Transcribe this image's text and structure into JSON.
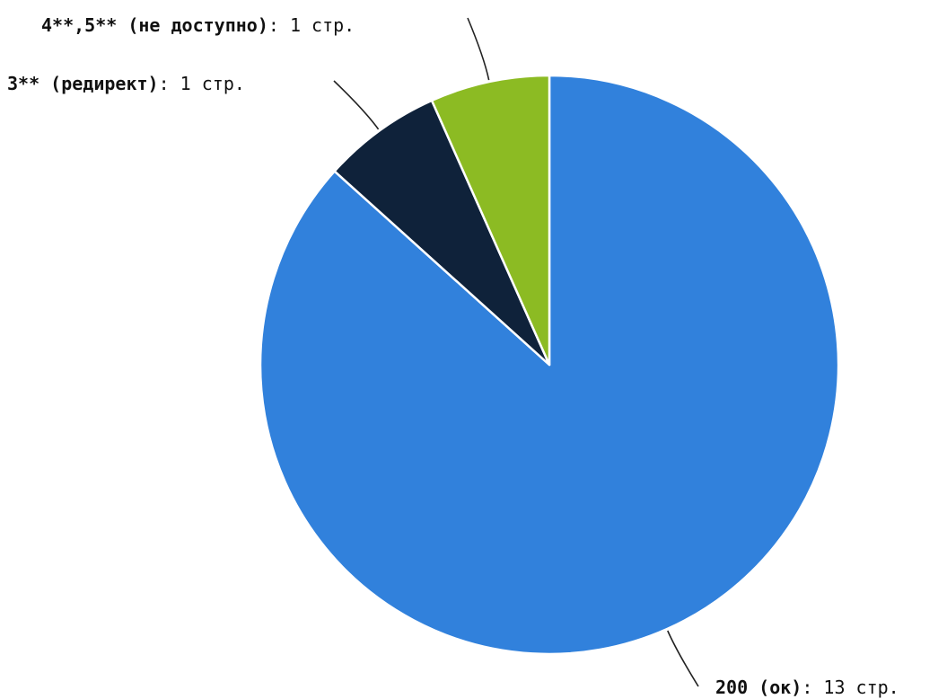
{
  "chart_data": {
    "type": "pie",
    "title": "",
    "slices": [
      {
        "category": "200 (ок)",
        "value": 13,
        "value_text": ": 13 стр.",
        "color": "#3181dc"
      },
      {
        "category": "3** (редирект)",
        "value": 1,
        "value_text": ": 1 стр.",
        "color": "#0f223a"
      },
      {
        "category": "4**,5** (не доступно)",
        "value": 1,
        "value_text": ": 1 стр.",
        "color": "#8cbb23"
      }
    ],
    "slice_border_color": "#ffffff",
    "leader_line_color": "#222222"
  }
}
